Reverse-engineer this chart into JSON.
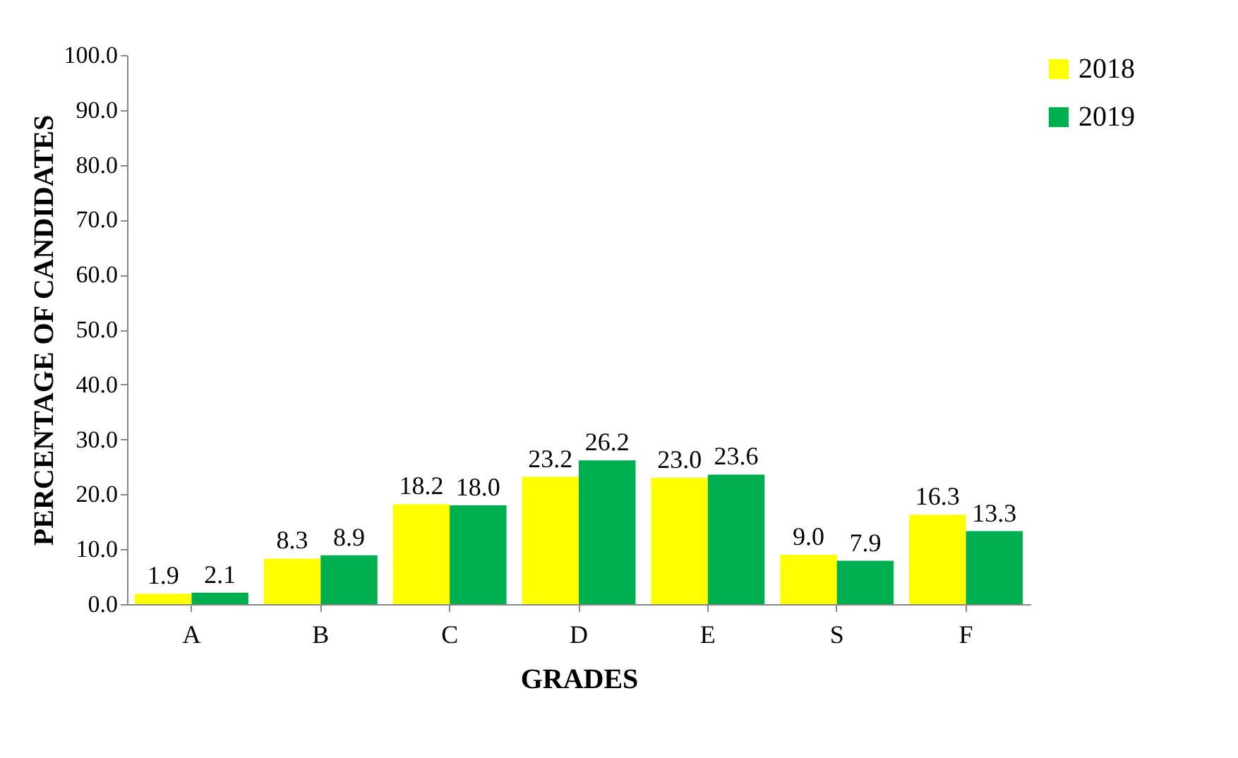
{
  "chart_data": {
    "type": "bar",
    "xlabel": "GRADES",
    "ylabel": "PERCENTAGE OF CANDIDATES",
    "categories": [
      "A",
      "B",
      "C",
      "D",
      "E",
      "S",
      "F"
    ],
    "series": [
      {
        "name": "2018",
        "color": "#ffff00",
        "values": [
          1.9,
          8.3,
          18.2,
          23.2,
          23.0,
          9.0,
          16.3
        ],
        "value_labels": [
          "1.9",
          "8.3",
          "18.2",
          "23.2",
          "23.0",
          "9.0",
          "16.3"
        ]
      },
      {
        "name": "2019",
        "color": "#00b050",
        "values": [
          2.1,
          8.9,
          18.0,
          26.2,
          23.6,
          7.9,
          13.3
        ],
        "value_labels": [
          "2.1",
          "8.9",
          "18.0",
          "26.2",
          "23.6",
          "7.9",
          "13.3"
        ]
      }
    ],
    "ylim": [
      0,
      100
    ],
    "yticks": [
      {
        "value": 0,
        "label": "0.0"
      },
      {
        "value": 10,
        "label": "10.0"
      },
      {
        "value": 20,
        "label": "20.0"
      },
      {
        "value": 30,
        "label": "30.0"
      },
      {
        "value": 40,
        "label": "40.0"
      },
      {
        "value": 50,
        "label": "50.0"
      },
      {
        "value": 60,
        "label": "60.0"
      },
      {
        "value": 70,
        "label": "70.0"
      },
      {
        "value": 80,
        "label": "80.0"
      },
      {
        "value": 90,
        "label": "90.0"
      },
      {
        "value": 100,
        "label": "100.0"
      }
    ],
    "grid": false,
    "legend": "right"
  }
}
